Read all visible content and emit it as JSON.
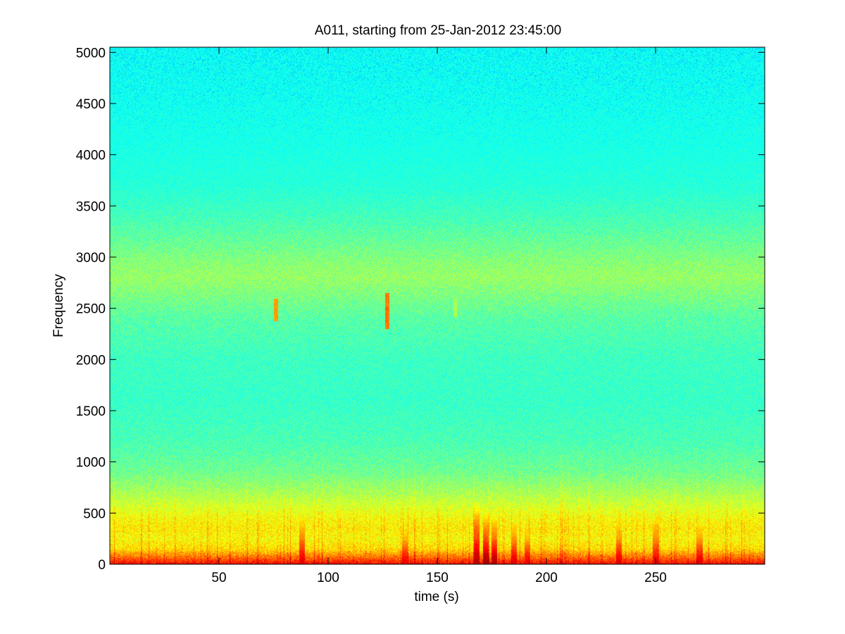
{
  "chart_data": {
    "type": "heatmap",
    "title": "A011, starting from 25-Jan-2012 23:45:00",
    "xlabel": "time (s)",
    "ylabel": "Frequency",
    "xlim": [
      0,
      300
    ],
    "ylim": [
      0,
      5050
    ],
    "xticks": [
      50,
      100,
      150,
      200,
      250
    ],
    "yticks": [
      0,
      500,
      1000,
      1500,
      2000,
      2500,
      3000,
      3500,
      4000,
      4500,
      5000
    ],
    "grid": false,
    "colormap": [
      "#00008f",
      "#0000ff",
      "#00ffff",
      "#33ffcc",
      "#99ff66",
      "#ffff00",
      "#ff8000",
      "#ff0000",
      "#800000"
    ],
    "intensity_profile": {
      "frequency": [
        0,
        60,
        150,
        250,
        350,
        450,
        550,
        700,
        900,
        1200,
        1600,
        2000,
        2400,
        2650,
        2800,
        2950,
        3150,
        3400,
        3700,
        4100,
        4600,
        5050
      ],
      "level": [
        0.88,
        0.78,
        0.66,
        0.62,
        0.64,
        0.62,
        0.58,
        0.52,
        0.45,
        0.4,
        0.37,
        0.38,
        0.42,
        0.47,
        0.5,
        0.48,
        0.44,
        0.39,
        0.34,
        0.31,
        0.29,
        0.28
      ]
    },
    "transient_events": [
      {
        "time": 76,
        "freq_low": 2380,
        "freq_high": 2600,
        "level": 0.76
      },
      {
        "time": 127,
        "freq_low": 2300,
        "freq_high": 2650,
        "level": 0.8
      },
      {
        "time": 158,
        "freq_low": 2420,
        "freq_high": 2600,
        "level": 0.56
      }
    ],
    "low_frequency_bursts": [
      {
        "time": 88,
        "freq_high": 450,
        "level": 0.9
      },
      {
        "time": 135,
        "freq_high": 350,
        "level": 0.88
      },
      {
        "time": 168,
        "freq_high": 600,
        "level": 0.95
      },
      {
        "time": 172,
        "freq_high": 500,
        "level": 0.97
      },
      {
        "time": 176,
        "freq_high": 450,
        "level": 0.95
      },
      {
        "time": 185,
        "freq_high": 400,
        "level": 0.9
      },
      {
        "time": 191,
        "freq_high": 350,
        "level": 0.88
      },
      {
        "time": 233,
        "freq_high": 400,
        "level": 0.9
      },
      {
        "time": 250,
        "freq_high": 450,
        "level": 0.88
      },
      {
        "time": 270,
        "freq_high": 380,
        "level": 0.9
      }
    ]
  }
}
